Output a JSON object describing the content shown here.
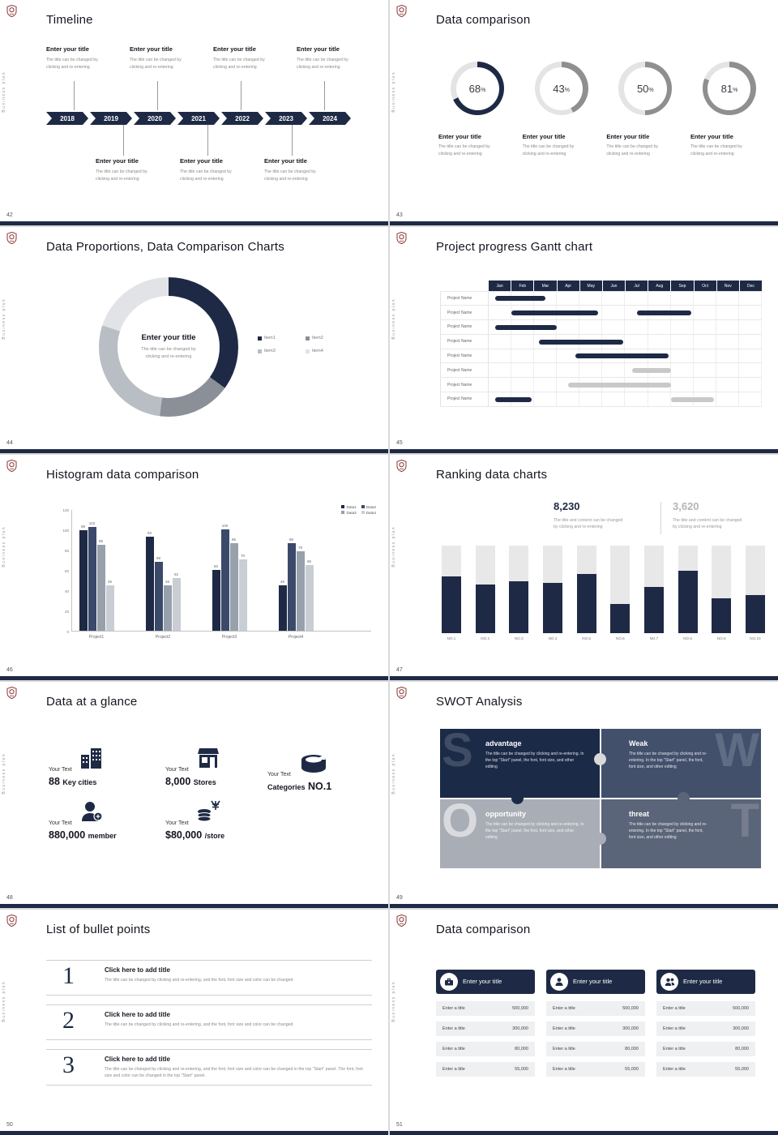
{
  "brand": {
    "vertical_text": "Business plan",
    "accent_color": "#1e2a45",
    "logo_icon": "university-crest-icon"
  },
  "slides": {
    "s42": {
      "number": "42",
      "title": "Timeline",
      "years": [
        "2018",
        "2019",
        "2020",
        "2021",
        "2022",
        "2023",
        "2024"
      ],
      "entry": {
        "title": "Enter your title",
        "desc1": "The title can be changed by",
        "desc2": "clicking and re-entering"
      },
      "top_entry_x": [
        57,
        160,
        263,
        366
      ],
      "bottom_entry_x": [
        118,
        222,
        326
      ]
    },
    "s43": {
      "number": "43",
      "title": "Data comparison",
      "chart_data": {
        "type": "donut-progress",
        "track_color": "#e4e4e4",
        "items": [
          {
            "percent": 68,
            "color": "#1e2a45",
            "title": "Enter your title",
            "desc1": "The title can be changed by",
            "desc2": "clicking and re-entering"
          },
          {
            "percent": 43,
            "color": "#8f8f8f",
            "title": "Enter your title",
            "desc1": "The title can be changed by",
            "desc2": "clicking and re-entering"
          },
          {
            "percent": 50,
            "color": "#8f8f8f",
            "title": "Enter your title",
            "desc1": "The title can be changed by",
            "desc2": "clicking and re-entering"
          },
          {
            "percent": 81,
            "color": "#8f8f8f",
            "title": "Enter your title",
            "desc1": "The title can be changed by",
            "desc2": "clicking and re-entering"
          }
        ]
      }
    },
    "s44": {
      "number": "44",
      "title": "Data Proportions, Data Comparison Charts",
      "center": {
        "title": "Enter your title",
        "desc1": "The title can be changed by",
        "desc2": "clicking and re-entering"
      },
      "chart_data": {
        "type": "pie",
        "segments": [
          {
            "label": "Item1",
            "value": 35,
            "color": "#1e2a45"
          },
          {
            "label": "Item2",
            "value": 17,
            "color": "#8a8f98"
          },
          {
            "label": "Item3",
            "value": 28,
            "color": "#b9bdc4"
          },
          {
            "label": "Item4",
            "value": 20,
            "color": "#e2e3e6"
          }
        ]
      }
    },
    "s45": {
      "number": "45",
      "title": "Project progress Gantt chart",
      "chart_data": {
        "type": "gantt",
        "months": [
          "Jan",
          "Feb",
          "Mar",
          "Apr",
          "May",
          "Jun",
          "Jul",
          "Aug",
          "Sep",
          "Oct",
          "Nov",
          "Dec"
        ],
        "row_label": "Project Name",
        "rows": [
          {
            "bars": [
              {
                "start": 0.3,
                "end": 2.5,
                "color": "#1e2a45"
              }
            ]
          },
          {
            "bars": [
              {
                "start": 1.0,
                "end": 4.8,
                "color": "#1e2a45"
              },
              {
                "start": 6.5,
                "end": 8.9,
                "color": "#1e2a45"
              }
            ]
          },
          {
            "bars": [
              {
                "start": 0.3,
                "end": 3.0,
                "color": "#1e2a45"
              }
            ]
          },
          {
            "bars": [
              {
                "start": 2.2,
                "end": 5.9,
                "color": "#1e2a45"
              }
            ]
          },
          {
            "bars": [
              {
                "start": 3.8,
                "end": 7.9,
                "color": "#1e2a45"
              }
            ]
          },
          {
            "bars": [
              {
                "start": 6.3,
                "end": 8.0,
                "color": "#c9c9c9"
              }
            ]
          },
          {
            "bars": [
              {
                "start": 3.5,
                "end": 8.0,
                "color": "#c9c9c9"
              }
            ]
          },
          {
            "bars": [
              {
                "start": 0.3,
                "end": 1.9,
                "color": "#1e2a45"
              },
              {
                "start": 8.0,
                "end": 9.9,
                "color": "#c9c9c9"
              }
            ]
          }
        ]
      }
    },
    "s46": {
      "number": "46",
      "title": "Histogram data comparison",
      "chart_data": {
        "type": "bar",
        "categories": [
          "Project1",
          "Project2",
          "Project3",
          "Project4"
        ],
        "series": [
          {
            "name": "Data1",
            "color": "#1e2a45",
            "values": [
              99,
              93,
              60,
              45
            ]
          },
          {
            "name": "Data2",
            "color": "#3b4a6a",
            "values": [
              102,
              68,
              100,
              86
            ]
          },
          {
            "name": "Data3",
            "color": "#98a0ac",
            "values": [
              85,
              45,
              86,
              78
            ]
          },
          {
            "name": "Data4",
            "color": "#c9cdd4",
            "values": [
              45,
              52,
              70,
              65
            ]
          }
        ],
        "ylim": [
          0,
          120
        ],
        "yticks": [
          0,
          20,
          40,
          60,
          80,
          100,
          120
        ],
        "legend_position": "top-right"
      }
    },
    "s47": {
      "number": "47",
      "title": "Ranking data charts",
      "stat_left": {
        "value": "8,230",
        "desc1": "The title and content can be changed",
        "desc2": "by clicking and re-entering"
      },
      "stat_right": {
        "value": "3,620",
        "desc1": "The title and content can be changed",
        "desc2": "by clicking and re-entering"
      },
      "chart_data": {
        "type": "bar",
        "categories": [
          "NO.1",
          "NO.2",
          "NO.3",
          "NO.4",
          "NO.5",
          "NO.6",
          "NO.7",
          "NO.8",
          "NO.9",
          "NO.10"
        ],
        "values": [
          65,
          55,
          59,
          57,
          67,
          33,
          53,
          71,
          40,
          43
        ],
        "max": 100,
        "fill_color": "#1e2a45",
        "track_color": "#e8e8e8"
      }
    },
    "s48": {
      "number": "48",
      "title": "Data at a glance",
      "stats": [
        {
          "label": "Your Text",
          "value": "88",
          "suffix": "Key cities",
          "icon": "city-buildings-icon"
        },
        {
          "label": "Your Text",
          "value": "8,000",
          "suffix": "Stores",
          "icon": "store-icon"
        },
        {
          "label": "Your Text",
          "value": "Categories",
          "suffix": "NO.1",
          "icon": "categories-cylinder-icon"
        },
        {
          "label": "Your Text",
          "value": "880,000",
          "suffix": "member",
          "icon": "member-add-icon"
        },
        {
          "label": "Your Text",
          "value": "$80,000",
          "suffix": "/store",
          "icon": "coins-icon"
        }
      ]
    },
    "s49": {
      "number": "49",
      "title": "SWOT Analysis",
      "quadrants": [
        {
          "letter": "S",
          "heading": "advantage",
          "bg": "#1b2a47",
          "text": "The title can be changed by clicking and re-entering. In the top \"Start\" panel, the font, font size, and other editing"
        },
        {
          "letter": "W",
          "heading": "Weak",
          "bg": "#42506c",
          "text": "The title can be changed by clicking and re-entering. In the top \"Start\" panel, the font, font size, and other editing"
        },
        {
          "letter": "O",
          "heading": "opportunity",
          "bg": "#a9aeb6",
          "text": "The title can be changed by clicking and re-entering. In the top \"Start\" panel, the font, font size, and other editing"
        },
        {
          "letter": "T",
          "heading": "threat",
          "bg": "#5b6579",
          "text": "The title can be changed by clicking and re-entering. In the top \"Start\" panel, the font, font size, and other editing"
        }
      ]
    },
    "s50": {
      "number": "50",
      "title": "List of bullet points",
      "items": [
        {
          "num": "1",
          "title": "Click here to add title",
          "desc": "The title can be changed by clicking and re-entering, and the font, font size and color can be changed"
        },
        {
          "num": "2",
          "title": "Click here to add title",
          "desc": "The title can be changed by clicking and re-entering, and the font, font size and color can be changed"
        },
        {
          "num": "3",
          "title": "Click here to add title",
          "desc": "The title can be changed by clicking and re-entering, and the font, font size and color can be changed in the top \"Start\" panel. The font, font size and color can be changed in the top \"Start\" panel."
        }
      ]
    },
    "s51": {
      "number": "51",
      "title": "Data comparison",
      "cards": [
        {
          "title": "Enter your title",
          "icon": "briefcase-icon",
          "rows": [
            {
              "label": "Enter a title",
              "value": "500,000"
            },
            {
              "label": "Enter a title",
              "value": "300,000"
            },
            {
              "label": "Enter a title",
              "value": "80,000"
            },
            {
              "label": "Enter a title",
              "value": "55,000"
            }
          ]
        },
        {
          "title": "Enter your title",
          "icon": "person-icon",
          "rows": [
            {
              "label": "Enter a title",
              "value": "500,000"
            },
            {
              "label": "Enter a title",
              "value": "300,000"
            },
            {
              "label": "Enter a title",
              "value": "80,000"
            },
            {
              "label": "Enter a title",
              "value": "55,000"
            }
          ]
        },
        {
          "title": "Enter your title",
          "icon": "people-icon",
          "rows": [
            {
              "label": "Enter a title",
              "value": "500,000"
            },
            {
              "label": "Enter a title",
              "value": "300,000"
            },
            {
              "label": "Enter a title",
              "value": "80,000"
            },
            {
              "label": "Enter a title",
              "value": "55,000"
            }
          ]
        }
      ]
    }
  }
}
